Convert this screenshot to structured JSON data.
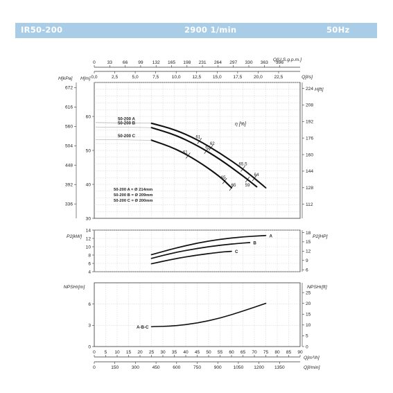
{
  "header": {
    "model": "IR50-200",
    "speed": "2900 1/min",
    "frequency": "50Hz",
    "color": "#a9cde6"
  },
  "chart_data": [
    {
      "type": "line",
      "name_panel": "head",
      "y_label_left_m": "H[m]",
      "y_label_left_kpa": "H[kPa]",
      "y_label_right_ft": "H[ft]",
      "top_axis_label_usgpm": "Q[U.S.g.p.m.]",
      "top_axis_label_ls": "Q[l/s]",
      "top_ticks_usgpm": [
        "0",
        "33",
        "66",
        "99",
        "132",
        "165",
        "198",
        "231",
        "264",
        "297",
        "330",
        "363",
        "396"
      ],
      "top_ticks_ls": [
        "0,0",
        "2,5",
        "5,0",
        "7,5",
        "10,0",
        "12,5",
        "15,0",
        "17,5",
        "20,0",
        "22,5"
      ],
      "ylim_m": [
        30,
        70
      ],
      "yticks_m": [
        "30",
        "40",
        "50",
        "60"
      ],
      "yticks_kpa": [
        "336",
        "392",
        "448",
        "504",
        "560",
        "616",
        "672"
      ],
      "yticks_ft": [
        "112",
        "128",
        "144",
        "160",
        "176",
        "192",
        "208",
        "224"
      ],
      "xlim_m3h": [
        0,
        90
      ],
      "series": [
        {
          "name": "50-200 A",
          "x": [
            25,
            35,
            45,
            55,
            65,
            75
          ],
          "y": [
            58.0,
            56.2,
            53.2,
            49.2,
            44.6,
            39.0
          ]
        },
        {
          "name": "50-200 B",
          "x": [
            25,
            35,
            45,
            55,
            65,
            71
          ],
          "y": [
            56.7,
            54.7,
            51.5,
            47.4,
            42.5,
            39.3
          ]
        },
        {
          "name": "50-200 C",
          "x": [
            25,
            35,
            45,
            55,
            60
          ],
          "y": [
            53.0,
            50.7,
            47.0,
            42.3,
            39.0
          ]
        }
      ],
      "efficiency_label": "η [%]",
      "efficiency_marks": [
        "61",
        "62",
        "61",
        "63",
        "65,5",
        "65",
        "64",
        "65",
        "59"
      ],
      "diameters": [
        "50-200 A = Ø 214mm",
        "50-200 B = Ø 209mm",
        "50-200 C = Ø 200mm"
      ]
    },
    {
      "type": "line",
      "name_panel": "power",
      "y_label_left": "P2[kW]",
      "y_label_right": "P2[HP]",
      "ylim_kw": [
        4,
        14
      ],
      "yticks_kw": [
        "4",
        "6",
        "8",
        "10",
        "12",
        "14"
      ],
      "yticks_hp": [
        "6",
        "9",
        "12",
        "15",
        "18"
      ],
      "series": [
        {
          "name": "A",
          "x": [
            25,
            35,
            45,
            55,
            65,
            75
          ],
          "y": [
            8.1,
            9.6,
            10.9,
            11.8,
            12.4,
            12.7
          ]
        },
        {
          "name": "B",
          "x": [
            25,
            35,
            45,
            55,
            65,
            68
          ],
          "y": [
            7.2,
            8.6,
            9.6,
            10.4,
            10.9,
            11.0
          ]
        },
        {
          "name": "C",
          "x": [
            25,
            35,
            45,
            55,
            60
          ],
          "y": [
            5.9,
            7.1,
            8.0,
            8.7,
            8.9
          ]
        }
      ]
    },
    {
      "type": "line",
      "name_panel": "npsh",
      "y_label_left": "NPSHr[m]",
      "y_label_right": "NPSHr[ft]",
      "ylim_m": [
        0,
        9
      ],
      "yticks_m": [
        "0",
        "3",
        "6"
      ],
      "yticks_ft": [
        "0",
        "5",
        "10",
        "15",
        "20",
        "25"
      ],
      "series": [
        {
          "name": "A-B-C",
          "x": [
            25,
            35,
            45,
            55,
            65,
            75
          ],
          "y": [
            2.8,
            2.9,
            3.3,
            4.0,
            5.0,
            6.1
          ]
        }
      ],
      "x_label_m3h": "Q[m³/h]",
      "x_label_lmin": "Q[l/min]",
      "xticks_m3h": [
        "0",
        "5",
        "10",
        "15",
        "20",
        "25",
        "30",
        "35",
        "40",
        "45",
        "50",
        "55",
        "60",
        "65",
        "70",
        "75",
        "80",
        "85",
        "90"
      ],
      "xticks_lmin": [
        "0",
        "150",
        "300",
        "450",
        "600",
        "750",
        "900",
        "1050",
        "1200",
        "1350"
      ]
    }
  ]
}
